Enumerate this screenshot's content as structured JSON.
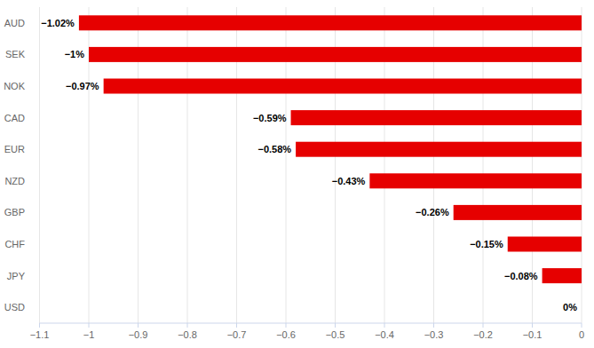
{
  "chart_data": {
    "type": "bar",
    "orientation": "horizontal",
    "categories": [
      "AUD",
      "SEK",
      "NOK",
      "CAD",
      "EUR",
      "NZD",
      "GBP",
      "CHF",
      "JPY",
      "USD"
    ],
    "values": [
      -1.02,
      -1,
      -0.97,
      -0.59,
      -0.58,
      -0.43,
      -0.26,
      -0.15,
      -0.08,
      0
    ],
    "value_labels": [
      "−1.02%",
      "−1%",
      "−0.97%",
      "−0.59%",
      "−0.58%",
      "−0.43%",
      "−0.26%",
      "−0.15%",
      "−0.08%",
      "0%"
    ],
    "color": "#e60000",
    "xlim": [
      -1.1,
      0
    ],
    "xticks": [
      {
        "value": -1.1,
        "label": "−1.1"
      },
      {
        "value": -1,
        "label": "−1"
      },
      {
        "value": -0.9,
        "label": "−0.9"
      },
      {
        "value": -0.8,
        "label": "−0.8"
      },
      {
        "value": -0.7,
        "label": "−0.7"
      },
      {
        "value": -0.6,
        "label": "−0.6"
      },
      {
        "value": -0.5,
        "label": "−0.5"
      },
      {
        "value": -0.4,
        "label": "−0.4"
      },
      {
        "value": -0.3,
        "label": "−0.3"
      },
      {
        "value": -0.2,
        "label": "−0.2"
      },
      {
        "value": -0.1,
        "label": "−0.1"
      },
      0
    ],
    "grid": true,
    "data_labels": true
  }
}
